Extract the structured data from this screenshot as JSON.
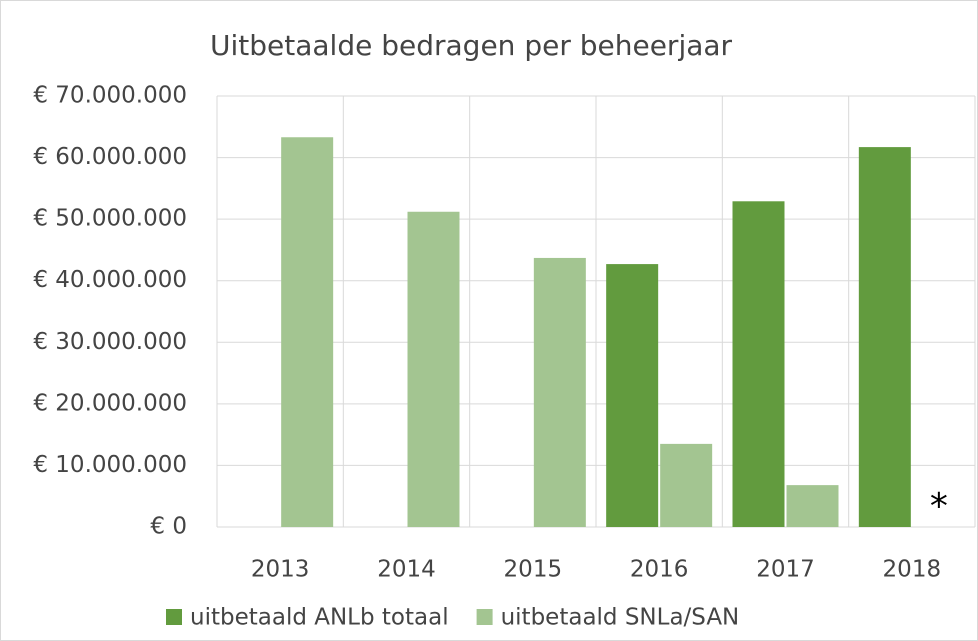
{
  "chart_data": {
    "type": "bar",
    "title": "Uitbetaalde bedragen per beheerjaar",
    "categories": [
      "2013",
      "2014",
      "2015",
      "2016",
      "2017",
      "2018"
    ],
    "series": [
      {
        "name": "uitbetaald ANLb totaal",
        "color": "#629b3e",
        "values": [
          null,
          null,
          null,
          42700000,
          52900000,
          61700000
        ]
      },
      {
        "name": "uitbetaald SNLa/SAN",
        "color": "#a3c591",
        "values": [
          63300000,
          51200000,
          43700000,
          13500000,
          6800000,
          null
        ]
      }
    ],
    "annotation": "*",
    "ylim": [
      0,
      70000000
    ],
    "yticks": [
      {
        "value": 0,
        "label": "€ 0"
      },
      {
        "value": 10000000,
        "label": "€ 10.000.000"
      },
      {
        "value": 20000000,
        "label": "€ 20.000.000"
      },
      {
        "value": 30000000,
        "label": "€ 30.000.000"
      },
      {
        "value": 40000000,
        "label": "€ 40.000.000"
      },
      {
        "value": 50000000,
        "label": "€ 50.000.000"
      },
      {
        "value": 60000000,
        "label": "€ 60.000.000"
      },
      {
        "value": 70000000,
        "label": "€ 70.000.000"
      }
    ],
    "grid": true,
    "legend": "bottom"
  }
}
